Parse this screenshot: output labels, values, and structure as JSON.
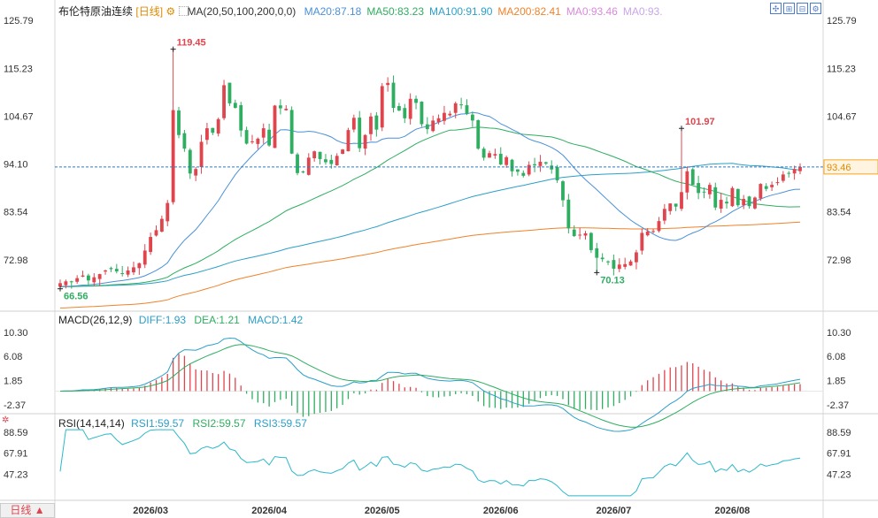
{
  "header": {
    "title": "布伦特原油连续",
    "period": "[日线]",
    "ma_label": "MA(20,50,100,200,0,0)",
    "ma_values": [
      {
        "text": "MA20:87.18",
        "color": "#4a90d9"
      },
      {
        "text": "MA50:83.23",
        "color": "#2eae5f"
      },
      {
        "text": "MA100:91.90",
        "color": "#2b9fc9"
      },
      {
        "text": "MA200:82.41",
        "color": "#f0822a"
      },
      {
        "text": "MA0:93.46",
        "color": "#d98ad9"
      },
      {
        "text": "MA0:93.",
        "color": "#c9a6e8"
      }
    ],
    "toolbar_icons": [
      "crosshair-icon",
      "zoom-in-icon",
      "zoom-out-icon",
      "settings-icon"
    ]
  },
  "macd_header": {
    "label": "MACD(26,12,9)",
    "diff": "DIFF:1.93",
    "dea": "DEA:1.21",
    "macd": "MACD:1.42"
  },
  "rsi_header": {
    "label": "RSI(14,14,14)",
    "rsi1": "RSI1:59.57",
    "rsi2": "RSI2:59.57",
    "rsi3": "RSI3:59.57"
  },
  "period_selector": "日线 ▲",
  "colors": {
    "up": "#e0454e",
    "down": "#2fae62",
    "ma20": "#4a90d9",
    "ma50": "#2eae5f",
    "ma100": "#2b9fc9",
    "ma200": "#f0822a",
    "diff": "#2b9fc9",
    "dea": "#2eae5f",
    "rsi": "#2bb8c9",
    "price_tag": "#f5a623"
  },
  "chart_data": [
    {
      "type": "candlestick",
      "name": "price",
      "y_ticks": [
        "125.79",
        "115.23",
        "104.67",
        "94.10",
        "83.54",
        "72.98"
      ],
      "ylim": [
        62.4,
        126.8
      ],
      "x_labels": [
        "2026/03",
        "2026/04",
        "2026/05",
        "2026/06",
        "2026/07",
        "2026/08"
      ],
      "x_label_index": [
        16,
        37,
        57,
        78,
        98,
        119
      ],
      "current_price": "93.46",
      "annotations": [
        {
          "text": "119.45",
          "index": 20,
          "value": 119.45,
          "kind": "high"
        },
        {
          "text": "66.56",
          "index": 0,
          "value": 66.56,
          "kind": "low"
        },
        {
          "text": "101.97",
          "index": 110,
          "value": 101.97,
          "kind": "high"
        },
        {
          "text": "70.13",
          "index": 95,
          "value": 70.13,
          "kind": "low"
        }
      ],
      "close": [
        67.8,
        68.2,
        68.0,
        68.9,
        69.5,
        68.4,
        69.1,
        69.8,
        70.6,
        70.9,
        70.4,
        70.0,
        70.6,
        71.3,
        72.2,
        75.0,
        78.0,
        79.5,
        82.0,
        85.5,
        106.0,
        100.5,
        97.5,
        92.0,
        93.0,
        99.0,
        102.0,
        101.0,
        104.0,
        111.5,
        107.5,
        106.5,
        101.5,
        98.6,
        99.1,
        99.7,
        102.0,
        98.2,
        107.0,
        106.4,
        106.3,
        96.4,
        92.1,
        92.3,
        95.5,
        96.9,
        95.2,
        94.5,
        94.1,
        95.9,
        97.3,
        101.6,
        104.3,
        97.6,
        100.5,
        104.6,
        101.7,
        111.3,
        112.0,
        106.5,
        105.9,
        104.2,
        108.5,
        107.6,
        102.9,
        101.8,
        103.7,
        104.2,
        105.4,
        105.2,
        107.5,
        107.2,
        105.2,
        103.7,
        97.5,
        95.5,
        96.5,
        96.3,
        94.0,
        95.6,
        92.5,
        92.4,
        91.5,
        93.9,
        93.8,
        94.6,
        94.2,
        92.9,
        90.5,
        86.1,
        79.9,
        78.2,
        78.5,
        78.8,
        75.1,
        73.4,
        73.1,
        72.4,
        71.0,
        71.9,
        72.0,
        72.6,
        74.6,
        78.9,
        79.2,
        79.3,
        81.5,
        84.2,
        85.4,
        84.7,
        87.9,
        92.5,
        89.5,
        87.7,
        88.0,
        89.5,
        84.5,
        86.2,
        85.4,
        88.8,
        85.0,
        86.4,
        84.8,
        86.7,
        89.7,
        88.6,
        89.5,
        90.1,
        91.8,
        92.1,
        93.0,
        93.46
      ]
    },
    {
      "type": "macd",
      "y_ticks": [
        "10.30",
        "6.08",
        "1.85",
        "-2.37"
      ],
      "ylim": [
        -2.4,
        11.5
      ]
    },
    {
      "type": "line",
      "name": "RSI",
      "y_ticks": [
        "88.59",
        "67.91",
        "47.23"
      ],
      "ylim": [
        25,
        92
      ]
    }
  ]
}
